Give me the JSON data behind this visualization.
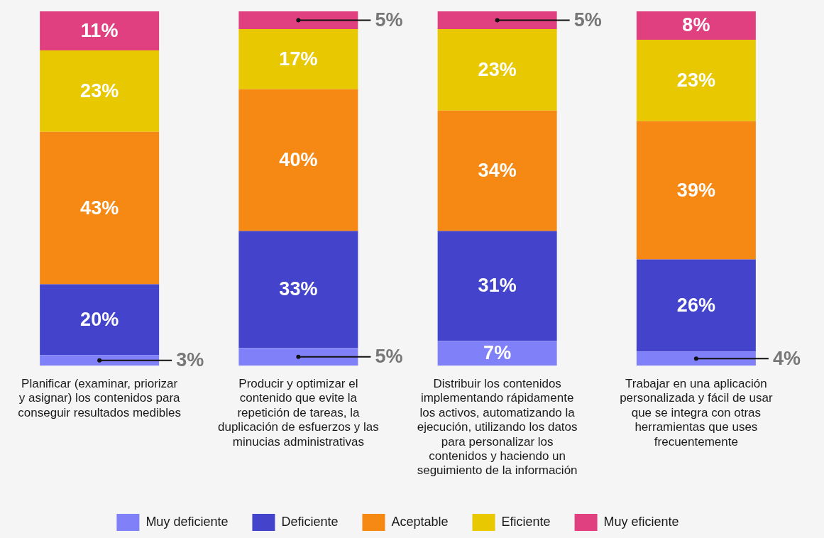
{
  "chart_data": {
    "type": "bar",
    "stacked": true,
    "legend": "bottom",
    "grid": false,
    "tick_labels": "x",
    "categories": [
      "Planificar (examinar, priorizar y asignar) los contenidos para conseguir resultados medibles",
      "Producir y optimizar el contenido que evite la repetición de tareas, la duplicación de esfuerzos y las minucias administrativas",
      "Distribuir los contenidos implementando rápidamente los activos, automatizando la ejecución, utilizando los datos para personalizar los contenidos y haciendo un seguimiento de la información",
      "Trabajar en una aplicación personalizada y fácil de usar que se integra con otras herramientas que uses frecuentemente"
    ],
    "series": [
      {
        "name": "Muy deficiente",
        "color": "#8080f8",
        "values": [
          3,
          5,
          7,
          4
        ],
        "value_labels": [
          "3%",
          "5%",
          "7%",
          "4%"
        ]
      },
      {
        "name": "Deficiente",
        "color": "#4343cc",
        "values": [
          20,
          33,
          31,
          26
        ],
        "value_labels": [
          "20%",
          "33%",
          "31%",
          "26%"
        ]
      },
      {
        "name": "Aceptable",
        "color": "#f68814",
        "values": [
          43,
          40,
          34,
          39
        ],
        "value_labels": [
          "43%",
          "40%",
          "34%",
          "39%"
        ]
      },
      {
        "name": "Eficiente",
        "color": "#e8c800",
        "values": [
          23,
          17,
          23,
          23
        ],
        "value_labels": [
          "23%",
          "17%",
          "23%",
          "23%"
        ]
      },
      {
        "name": "Muy eficiente",
        "color": "#e03f80",
        "values": [
          11,
          5,
          5,
          8
        ],
        "value_labels": [
          "11%",
          "5%",
          "5%",
          "8%"
        ]
      }
    ]
  }
}
